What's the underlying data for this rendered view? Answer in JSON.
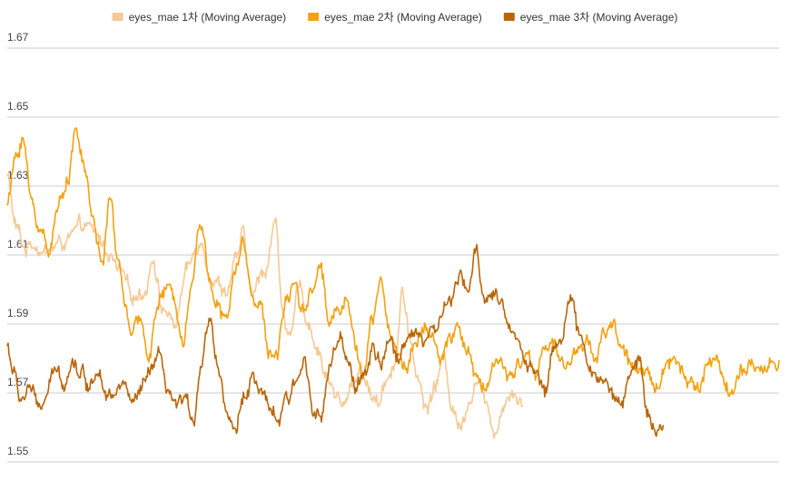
{
  "chart_data": {
    "type": "line",
    "title": "",
    "xlabel": "",
    "ylabel": "",
    "ylim": [
      1.55,
      1.67
    ],
    "yticks": [
      "1.67",
      "1.65",
      "1.63",
      "1.61",
      "1.59",
      "1.57",
      "1.55"
    ],
    "ytick_values": [
      1.67,
      1.65,
      1.63,
      1.61,
      1.59,
      1.57,
      1.55
    ],
    "grid": true,
    "legend_position": "top",
    "x_points": 900,
    "series": [
      {
        "name": "eyes_mae 1차 (Moving Average)",
        "color": "#f6c995",
        "start": 0,
        "anchors": [
          [
            0,
            1.633
          ],
          [
            10,
            1.618
          ],
          [
            20,
            1.612
          ],
          [
            30,
            1.614
          ],
          [
            45,
            1.611
          ],
          [
            60,
            1.613
          ],
          [
            75,
            1.615
          ],
          [
            90,
            1.618
          ],
          [
            105,
            1.615
          ],
          [
            115,
            1.612
          ],
          [
            130,
            1.605
          ],
          [
            145,
            1.598
          ],
          [
            160,
            1.6
          ],
          [
            170,
            1.61
          ],
          [
            180,
            1.595
          ],
          [
            195,
            1.59
          ],
          [
            210,
            1.606
          ],
          [
            225,
            1.615
          ],
          [
            240,
            1.603
          ],
          [
            255,
            1.6
          ],
          [
            265,
            1.607
          ],
          [
            275,
            1.615
          ],
          [
            285,
            1.598
          ],
          [
            300,
            1.606
          ],
          [
            312,
            1.62
          ],
          [
            320,
            1.596
          ],
          [
            330,
            1.585
          ],
          [
            340,
            1.6
          ],
          [
            352,
            1.59
          ],
          [
            362,
            1.583
          ],
          [
            372,
            1.575
          ],
          [
            382,
            1.57
          ],
          [
            392,
            1.565
          ],
          [
            402,
            1.573
          ],
          [
            412,
            1.578
          ],
          [
            422,
            1.57
          ],
          [
            432,
            1.567
          ],
          [
            442,
            1.575
          ],
          [
            452,
            1.58
          ],
          [
            460,
            1.6
          ],
          [
            468,
            1.585
          ],
          [
            478,
            1.575
          ],
          [
            488,
            1.565
          ],
          [
            498,
            1.572
          ],
          [
            508,
            1.58
          ],
          [
            518,
            1.567
          ],
          [
            528,
            1.56
          ],
          [
            538,
            1.569
          ],
          [
            548,
            1.575
          ],
          [
            558,
            1.565
          ],
          [
            568,
            1.56
          ],
          [
            578,
            1.567
          ],
          [
            588,
            1.572
          ],
          [
            600,
            1.567
          ]
        ]
      },
      {
        "name": "eyes_mae 2차 (Moving Average)",
        "color": "#f4a10f",
        "start": 0,
        "anchors": [
          [
            0,
            1.625
          ],
          [
            10,
            1.638
          ],
          [
            18,
            1.645
          ],
          [
            28,
            1.625
          ],
          [
            38,
            1.618
          ],
          [
            48,
            1.612
          ],
          [
            58,
            1.622
          ],
          [
            70,
            1.633
          ],
          [
            80,
            1.646
          ],
          [
            90,
            1.635
          ],
          [
            100,
            1.62
          ],
          [
            110,
            1.608
          ],
          [
            120,
            1.625
          ],
          [
            128,
            1.61
          ],
          [
            136,
            1.598
          ],
          [
            145,
            1.586
          ],
          [
            155,
            1.59
          ],
          [
            165,
            1.582
          ],
          [
            175,
            1.595
          ],
          [
            185,
            1.6
          ],
          [
            195,
            1.596
          ],
          [
            205,
            1.588
          ],
          [
            215,
            1.603
          ],
          [
            225,
            1.62
          ],
          [
            235,
            1.605
          ],
          [
            245,
            1.595
          ],
          [
            255,
            1.59
          ],
          [
            265,
            1.605
          ],
          [
            275,
            1.613
          ],
          [
            285,
            1.6
          ],
          [
            295,
            1.595
          ],
          [
            305,
            1.58
          ],
          [
            315,
            1.583
          ],
          [
            325,
            1.598
          ],
          [
            335,
            1.603
          ],
          [
            345,
            1.595
          ],
          [
            355,
            1.6
          ],
          [
            365,
            1.608
          ],
          [
            375,
            1.59
          ],
          [
            385,
            1.595
          ],
          [
            395,
            1.6
          ],
          [
            405,
            1.583
          ],
          [
            415,
            1.575
          ],
          [
            425,
            1.59
          ],
          [
            435,
            1.603
          ],
          [
            445,
            1.588
          ],
          [
            455,
            1.582
          ],
          [
            465,
            1.577
          ],
          [
            475,
            1.585
          ],
          [
            485,
            1.59
          ],
          [
            495,
            1.586
          ],
          [
            505,
            1.578
          ],
          [
            515,
            1.585
          ],
          [
            525,
            1.59
          ],
          [
            535,
            1.582
          ],
          [
            545,
            1.575
          ],
          [
            555,
            1.57
          ],
          [
            565,
            1.576
          ],
          [
            575,
            1.58
          ],
          [
            585,
            1.573
          ],
          [
            595,
            1.578
          ],
          [
            605,
            1.582
          ],
          [
            615,
            1.575
          ],
          [
            625,
            1.582
          ],
          [
            635,
            1.586
          ],
          [
            645,
            1.58
          ],
          [
            655,
            1.578
          ],
          [
            665,
            1.583
          ],
          [
            675,
            1.586
          ],
          [
            685,
            1.58
          ],
          [
            695,
            1.587
          ],
          [
            705,
            1.59
          ],
          [
            715,
            1.584
          ],
          [
            725,
            1.578
          ],
          [
            735,
            1.574
          ],
          [
            745,
            1.576
          ],
          [
            755,
            1.572
          ],
          [
            765,
            1.578
          ],
          [
            775,
            1.58
          ],
          [
            785,
            1.577
          ],
          [
            795,
            1.575
          ],
          [
            805,
            1.571
          ],
          [
            815,
            1.577
          ],
          [
            825,
            1.581
          ],
          [
            835,
            1.574
          ],
          [
            845,
            1.571
          ],
          [
            855,
            1.575
          ],
          [
            865,
            1.578
          ],
          [
            875,
            1.574
          ],
          [
            885,
            1.577
          ],
          [
            899,
            1.579
          ]
        ]
      },
      {
        "name": "eyes_mae 3차 (Moving Average)",
        "color": "#b9660a",
        "start": 0,
        "anchors": [
          [
            0,
            1.584
          ],
          [
            8,
            1.575
          ],
          [
            16,
            1.568
          ],
          [
            26,
            1.572
          ],
          [
            36,
            1.565
          ],
          [
            46,
            1.569
          ],
          [
            56,
            1.576
          ],
          [
            66,
            1.574
          ],
          [
            76,
            1.58
          ],
          [
            86,
            1.576
          ],
          [
            96,
            1.572
          ],
          [
            106,
            1.578
          ],
          [
            116,
            1.572
          ],
          [
            126,
            1.569
          ],
          [
            136,
            1.573
          ],
          [
            146,
            1.566
          ],
          [
            156,
            1.57
          ],
          [
            166,
            1.575
          ],
          [
            176,
            1.58
          ],
          [
            186,
            1.57
          ],
          [
            196,
            1.565
          ],
          [
            206,
            1.568
          ],
          [
            216,
            1.562
          ],
          [
            226,
            1.58
          ],
          [
            236,
            1.592
          ],
          [
            246,
            1.578
          ],
          [
            256,
            1.565
          ],
          [
            266,
            1.558
          ],
          [
            276,
            1.57
          ],
          [
            286,
            1.575
          ],
          [
            296,
            1.568
          ],
          [
            306,
            1.565
          ],
          [
            316,
            1.562
          ],
          [
            326,
            1.567
          ],
          [
            336,
            1.572
          ],
          [
            346,
            1.58
          ],
          [
            356,
            1.568
          ],
          [
            366,
            1.563
          ],
          [
            376,
            1.578
          ],
          [
            386,
            1.585
          ],
          [
            396,
            1.578
          ],
          [
            406,
            1.572
          ],
          [
            416,
            1.576
          ],
          [
            426,
            1.582
          ],
          [
            436,
            1.578
          ],
          [
            446,
            1.584
          ],
          [
            456,
            1.58
          ],
          [
            466,
            1.586
          ],
          [
            476,
            1.59
          ],
          [
            486,
            1.585
          ],
          [
            496,
            1.588
          ],
          [
            506,
            1.592
          ],
          [
            516,
            1.596
          ],
          [
            526,
            1.602
          ],
          [
            536,
            1.6
          ],
          [
            546,
            1.61
          ],
          [
            556,
            1.598
          ],
          [
            566,
            1.6
          ],
          [
            576,
            1.595
          ],
          [
            586,
            1.588
          ],
          [
            596,
            1.585
          ],
          [
            606,
            1.58
          ],
          [
            616,
            1.575
          ],
          [
            626,
            1.57
          ],
          [
            636,
            1.583
          ],
          [
            646,
            1.588
          ],
          [
            656,
            1.598
          ],
          [
            666,
            1.585
          ],
          [
            676,
            1.58
          ],
          [
            686,
            1.575
          ],
          [
            696,
            1.572
          ],
          [
            706,
            1.57
          ],
          [
            716,
            1.566
          ],
          [
            726,
            1.575
          ],
          [
            736,
            1.58
          ],
          [
            746,
            1.565
          ],
          [
            756,
            1.56
          ],
          [
            764,
            1.562
          ]
        ]
      }
    ]
  }
}
